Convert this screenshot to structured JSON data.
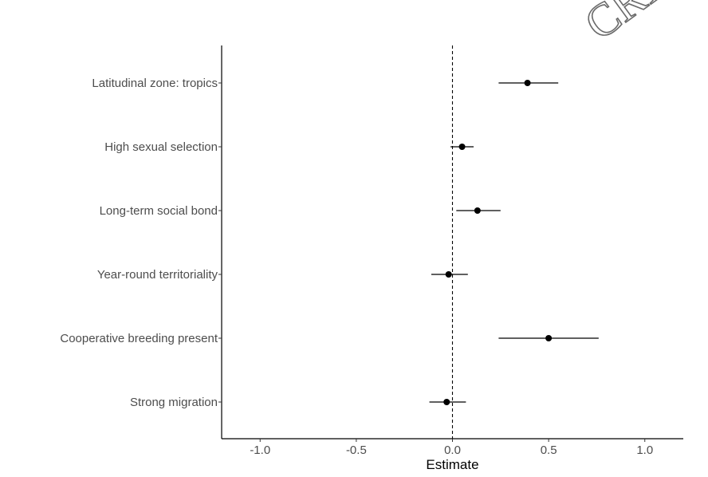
{
  "watermark": "CRIF",
  "chart_data": {
    "type": "scatter",
    "subtype": "forest-plot",
    "title": "",
    "xlabel": "Estimate",
    "ylabel": "",
    "xlim": [
      -1.2,
      1.2
    ],
    "xticks": [
      -1.0,
      -0.5,
      0.0,
      0.5,
      1.0
    ],
    "xtick_labels": [
      "-1.0",
      "-0.5",
      "0.0",
      "0.5",
      "1.0"
    ],
    "reference_line": {
      "x": 0.0,
      "style": "dashed"
    },
    "grid": false,
    "series": [
      {
        "categories": [
          "Latitudinal zone: tropics",
          "High sexual selection",
          "Long-term social bond",
          "Year-round territoriality",
          "Cooperative breeding present",
          "Strong migration"
        ],
        "estimate": [
          0.39,
          0.05,
          0.13,
          -0.02,
          0.5,
          -0.03
        ],
        "lower": [
          0.24,
          -0.01,
          0.02,
          -0.11,
          0.24,
          -0.12
        ],
        "upper": [
          0.55,
          0.11,
          0.25,
          0.08,
          0.76,
          0.07
        ]
      }
    ]
  }
}
